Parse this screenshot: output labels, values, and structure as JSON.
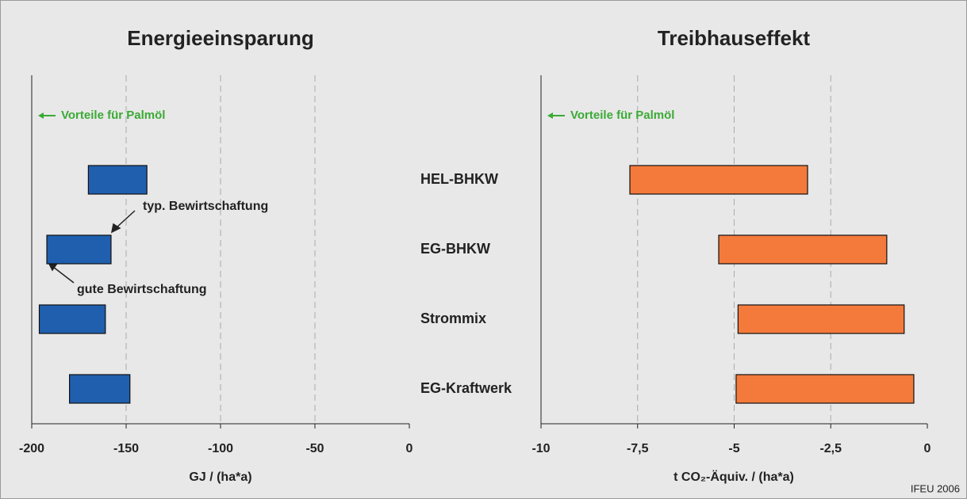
{
  "chart_data": [
    {
      "type": "range-bar",
      "title": "Energieeinsparung",
      "xlabel": "GJ / (ha*a)",
      "categories": [
        "HEL-BHKW",
        "EG-BHKW",
        "Strommix",
        "EG-Kraftwerk"
      ],
      "values": [
        [
          -170,
          -139
        ],
        [
          -192,
          -158
        ],
        [
          -196,
          -161
        ],
        [
          -180,
          -148
        ]
      ],
      "color": "#1f5fae",
      "xlim": [
        -200,
        0
      ],
      "xticks": [
        -200,
        -150,
        -100,
        -50,
        0
      ],
      "grid": true,
      "annotations": [
        "Vorteile für Palmöl",
        "typ. Bewirtschaftung",
        "gute Bewirtschaftung"
      ]
    },
    {
      "type": "range-bar",
      "title": "Treibhauseffekt",
      "xlabel": "t CO₂-Äquiv. / (ha*a)",
      "values": [
        [
          -7.7,
          -3.1
        ],
        [
          -5.4,
          -1.05
        ],
        [
          -4.9,
          -0.6
        ],
        [
          -4.95,
          -0.35
        ]
      ],
      "color": "#f47a3c",
      "xlim": [
        -10,
        0
      ],
      "xticks": [
        -10,
        {
          "value": -7.5,
          "label": "-7,5"
        },
        -5,
        {
          "value": -2.5,
          "label": "-2,5"
        },
        0
      ],
      "grid": true,
      "annotations": [
        "Vorteile für Palmöl"
      ]
    }
  ],
  "source": "IFEU 2006"
}
